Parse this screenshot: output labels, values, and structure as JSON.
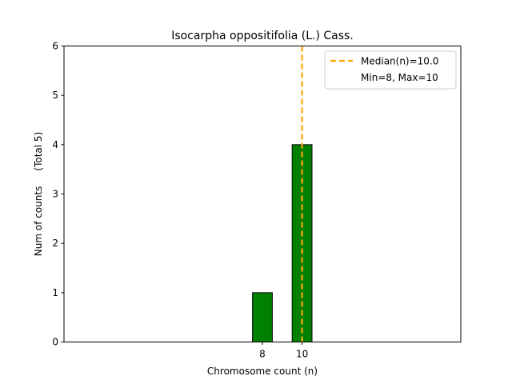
{
  "chart_data": {
    "type": "bar",
    "title": "Isocarpha oppositifolia (L.) Cass.",
    "xlabel": "Chromosome count (n)",
    "ylabel": "Num of counts     (Total 5)",
    "x": [
      8,
      10
    ],
    "values": [
      1,
      4
    ],
    "xticks": [
      "8",
      "10"
    ],
    "yticks": [
      "0",
      "1",
      "2",
      "3",
      "4",
      "5",
      "6"
    ],
    "ylim": [
      0,
      6
    ],
    "xlim": [
      -2,
      18
    ],
    "bar_color": "#008000",
    "median": 10.0,
    "median_color": "#ffa500",
    "legend": {
      "median_label": "Median(n)=10.0",
      "range_label": "Min=8, Max=10",
      "position": "top-right"
    }
  }
}
